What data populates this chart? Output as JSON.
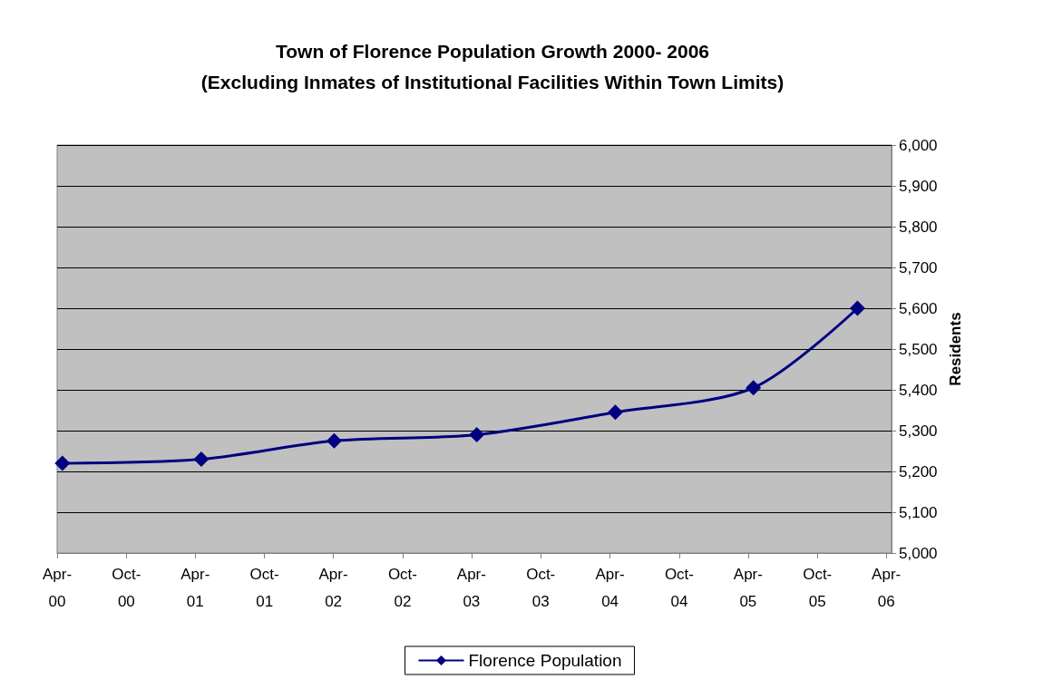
{
  "chart_data": {
    "type": "line",
    "title": "Town of Florence Population Growth 2000- 2006\n(Excluding Inmates of Institutional Facilities Within Town Limits)",
    "y2label": "Residents",
    "x": [
      "2000-04-15",
      "2001-04-17",
      "2002-04-03",
      "2003-04-15",
      "2004-04-15",
      "2005-04-15",
      "2006-01-15"
    ],
    "series": [
      {
        "name": "Florence Population",
        "color": "#000080",
        "axis": "y2",
        "values": [
          5220,
          5230,
          5275,
          5290,
          5345,
          5405,
          5600
        ]
      }
    ],
    "xlim": [
      "2000-04-01",
      "2006-04-15"
    ],
    "xticks": [
      {
        "value": "2000-04-01",
        "label": "Apr-00"
      },
      {
        "value": "2000-10-01",
        "label": "Oct-00"
      },
      {
        "value": "2001-04-01",
        "label": "Apr-01"
      },
      {
        "value": "2001-10-01",
        "label": "Oct-01"
      },
      {
        "value": "2002-04-01",
        "label": "Apr-02"
      },
      {
        "value": "2002-10-01",
        "label": "Oct-02"
      },
      {
        "value": "2003-04-01",
        "label": "Apr-03"
      },
      {
        "value": "2003-10-01",
        "label": "Oct-03"
      },
      {
        "value": "2004-04-01",
        "label": "Apr-04"
      },
      {
        "value": "2004-10-01",
        "label": "Oct-04"
      },
      {
        "value": "2005-04-01",
        "label": "Apr-05"
      },
      {
        "value": "2005-10-01",
        "label": "Oct-05"
      },
      {
        "value": "2006-04-01",
        "label": "Apr-06"
      }
    ],
    "y2lim": [
      5000,
      6000
    ],
    "y2ticks": [
      {
        "value": 5000,
        "label": "5,000"
      },
      {
        "value": 5100,
        "label": "5,100"
      },
      {
        "value": 5200,
        "label": "5,200"
      },
      {
        "value": 5300,
        "label": "5,300"
      },
      {
        "value": 5400,
        "label": "5,400"
      },
      {
        "value": 5500,
        "label": "5,500"
      },
      {
        "value": 5600,
        "label": "5,600"
      },
      {
        "value": 5700,
        "label": "5,700"
      },
      {
        "value": 5800,
        "label": "5,800"
      },
      {
        "value": 5900,
        "label": "5,900"
      },
      {
        "value": 6000,
        "label": "6,000"
      }
    ],
    "grid": "y",
    "legend": "bottom",
    "marker": "diamond",
    "line_style": "solid"
  }
}
